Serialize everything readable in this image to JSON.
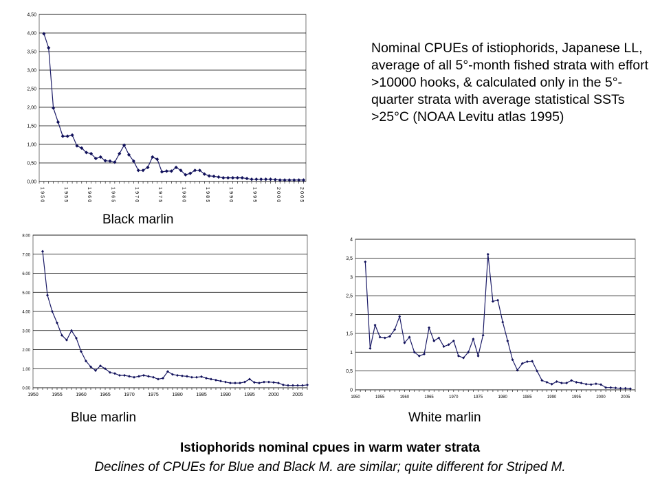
{
  "slide": {
    "description": "Nominal CPUEs of istiophorids, Japanese LL, average of all 5°-month fished strata with effort >10000 hooks, & calculated only in the 5°-quarter strata with average statistical SSTs >25°C (NOAA Levitu atlas 1995)",
    "title": "Istiophorids nominal cpues in warm water strata",
    "subtitle": "Declines of CPUEs for Blue and Black M. are similar; quite different for Striped M."
  },
  "chart_data": [
    {
      "type": "line",
      "caption": "Black marlin",
      "x_tick_labels": [
        "1950",
        "1955",
        "1960",
        "1965",
        "1970",
        "1975",
        "1980",
        "1985",
        "1990",
        "1995",
        "2000",
        "2005"
      ],
      "y_tick_labels": [
        "0,00",
        "0,50",
        "1,00",
        "1,50",
        "2,00",
        "2,50",
        "3,00",
        "3,50",
        "4,00",
        "4,50"
      ],
      "ylim": [
        0,
        4.5
      ],
      "xlim": [
        1951,
        2006
      ],
      "x": [
        1951,
        1952,
        1953,
        1954,
        1955,
        1956,
        1957,
        1958,
        1959,
        1960,
        1961,
        1962,
        1963,
        1964,
        1965,
        1966,
        1967,
        1968,
        1969,
        1970,
        1971,
        1972,
        1973,
        1974,
        1975,
        1976,
        1977,
        1978,
        1979,
        1980,
        1981,
        1982,
        1983,
        1984,
        1985,
        1986,
        1987,
        1988,
        1989,
        1990,
        1991,
        1992,
        1993,
        1994,
        1995,
        1996,
        1997,
        1998,
        1999,
        2000,
        2001,
        2002,
        2003,
        2004,
        2005,
        2006
      ],
      "values": [
        3.98,
        3.6,
        1.98,
        1.6,
        1.22,
        1.22,
        1.25,
        0.96,
        0.9,
        0.78,
        0.75,
        0.62,
        0.66,
        0.56,
        0.55,
        0.52,
        0.75,
        0.98,
        0.72,
        0.55,
        0.3,
        0.3,
        0.38,
        0.66,
        0.6,
        0.26,
        0.28,
        0.28,
        0.38,
        0.3,
        0.18,
        0.22,
        0.3,
        0.3,
        0.2,
        0.15,
        0.14,
        0.12,
        0.1,
        0.1,
        0.1,
        0.1,
        0.1,
        0.08,
        0.06,
        0.06,
        0.06,
        0.06,
        0.06,
        0.05,
        0.04,
        0.04,
        0.04,
        0.04,
        0.04,
        0.04
      ],
      "grid": true
    },
    {
      "type": "line",
      "caption": "Blue marlin",
      "x_tick_labels": [
        "1950",
        "1955",
        "1960",
        "1965",
        "1970",
        "1975",
        "1980",
        "1985",
        "1990",
        "1995",
        "2000",
        "2005"
      ],
      "y_tick_labels": [
        "0.00",
        "1.00",
        "2.00",
        "3.00",
        "4.00",
        "5.00",
        "6.00",
        "7.00",
        "8.00"
      ],
      "ylim": [
        0,
        8
      ],
      "xlim": [
        1950,
        2007
      ],
      "x": [
        1952,
        1953,
        1954,
        1955,
        1956,
        1957,
        1958,
        1959,
        1960,
        1961,
        1962,
        1963,
        1964,
        1965,
        1966,
        1967,
        1968,
        1969,
        1970,
        1971,
        1972,
        1973,
        1974,
        1975,
        1976,
        1977,
        1978,
        1979,
        1980,
        1981,
        1982,
        1983,
        1984,
        1985,
        1986,
        1987,
        1988,
        1989,
        1990,
        1991,
        1992,
        1993,
        1994,
        1995,
        1996,
        1997,
        1998,
        1999,
        2000,
        2001,
        2002,
        2003,
        2004,
        2005,
        2006,
        2007
      ],
      "values": [
        7.15,
        4.85,
        4.0,
        3.4,
        2.75,
        2.5,
        3.0,
        2.6,
        1.9,
        1.4,
        1.1,
        0.9,
        1.15,
        1.0,
        0.8,
        0.75,
        0.65,
        0.65,
        0.6,
        0.55,
        0.6,
        0.65,
        0.6,
        0.55,
        0.45,
        0.5,
        0.85,
        0.7,
        0.65,
        0.62,
        0.6,
        0.55,
        0.55,
        0.58,
        0.5,
        0.45,
        0.4,
        0.35,
        0.3,
        0.25,
        0.25,
        0.25,
        0.3,
        0.45,
        0.28,
        0.25,
        0.3,
        0.3,
        0.28,
        0.25,
        0.15,
        0.12,
        0.12,
        0.12,
        0.12,
        0.15
      ],
      "grid": true
    },
    {
      "type": "line",
      "caption": "White marlin",
      "x_tick_labels": [
        "1950",
        "1955",
        "1960",
        "1965",
        "1970",
        "1975",
        "1980",
        "1985",
        "1990",
        "1995",
        "2000",
        "2005"
      ],
      "y_tick_labels": [
        "0",
        "0,5",
        "1",
        "1,5",
        "2",
        "2,5",
        "3",
        "3,5",
        "4"
      ],
      "ylim": [
        0,
        4
      ],
      "xlim": [
        1950,
        2007
      ],
      "x": [
        1952,
        1953,
        1954,
        1955,
        1956,
        1957,
        1958,
        1959,
        1960,
        1961,
        1962,
        1963,
        1964,
        1965,
        1966,
        1967,
        1968,
        1969,
        1970,
        1971,
        1972,
        1973,
        1974,
        1975,
        1976,
        1977,
        1978,
        1979,
        1980,
        1981,
        1982,
        1983,
        1984,
        1985,
        1986,
        1987,
        1988,
        1989,
        1990,
        1991,
        1992,
        1993,
        1994,
        1995,
        1996,
        1997,
        1998,
        1999,
        2000,
        2001,
        2002,
        2003,
        2004,
        2005,
        2006
      ],
      "values": [
        3.4,
        1.1,
        1.72,
        1.4,
        1.38,
        1.42,
        1.6,
        1.95,
        1.25,
        1.4,
        1.0,
        0.9,
        0.95,
        1.65,
        1.3,
        1.38,
        1.15,
        1.2,
        1.3,
        0.9,
        0.85,
        1.0,
        1.35,
        0.9,
        1.45,
        3.6,
        2.35,
        2.38,
        1.8,
        1.3,
        0.8,
        0.52,
        0.7,
        0.75,
        0.76,
        0.5,
        0.25,
        0.2,
        0.15,
        0.22,
        0.18,
        0.18,
        0.25,
        0.2,
        0.18,
        0.15,
        0.14,
        0.16,
        0.14,
        0.06,
        0.06,
        0.05,
        0.04,
        0.04,
        0.03
      ],
      "grid": true
    }
  ]
}
